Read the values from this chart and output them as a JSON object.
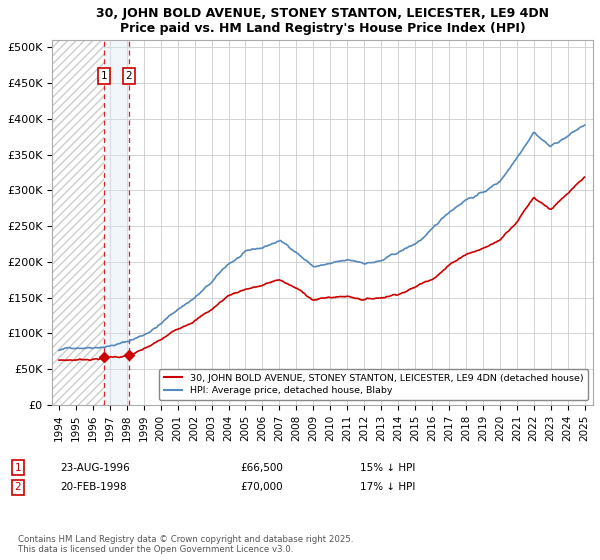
{
  "title": "30, JOHN BOLD AVENUE, STONEY STANTON, LEICESTER, LE9 4DN",
  "subtitle": "Price paid vs. HM Land Registry's House Price Index (HPI)",
  "ylabel_ticks": [
    "£0",
    "£50K",
    "£100K",
    "£150K",
    "£200K",
    "£250K",
    "£300K",
    "£350K",
    "£400K",
    "£450K",
    "£500K"
  ],
  "ytick_values": [
    0,
    50000,
    100000,
    150000,
    200000,
    250000,
    300000,
    350000,
    400000,
    450000,
    500000
  ],
  "xlim_start": 1993.6,
  "xlim_end": 2025.5,
  "ylim": [
    0,
    510000
  ],
  "sale_dates": [
    1996.645,
    1998.13
  ],
  "sale_prices": [
    66500,
    70000
  ],
  "sale_labels": [
    "1",
    "2"
  ],
  "legend_line1": "30, JOHN BOLD AVENUE, STONEY STANTON, LEICESTER, LE9 4DN (detached house)",
  "legend_line2": "HPI: Average price, detached house, Blaby",
  "footnote": "Contains HM Land Registry data © Crown copyright and database right 2025.\nThis data is licensed under the Open Government Licence v3.0.",
  "hpi_color": "#5588bb",
  "sale_color": "#cc0000",
  "shade_color": "#d8e8f5",
  "hatch_color": "#cccccc",
  "x_ticks": [
    1994,
    1995,
    1996,
    1997,
    1998,
    1999,
    2000,
    2001,
    2002,
    2003,
    2004,
    2005,
    2006,
    2007,
    2008,
    2009,
    2010,
    2011,
    2012,
    2013,
    2014,
    2015,
    2016,
    2017,
    2018,
    2019,
    2020,
    2021,
    2022,
    2023,
    2024,
    2025
  ],
  "hpi_knots": [
    1994,
    1995,
    1996,
    1997,
    1998,
    1999,
    2000,
    2001,
    2002,
    2003,
    2004,
    2005,
    2006,
    2007,
    2008,
    2009,
    2010,
    2011,
    2012,
    2013,
    2014,
    2015,
    2016,
    2017,
    2018,
    2019,
    2020,
    2021,
    2022,
    2023,
    2024,
    2025
  ],
  "hpi_vals": [
    76000,
    80000,
    83000,
    87000,
    92000,
    102000,
    118000,
    138000,
    155000,
    175000,
    200000,
    215000,
    220000,
    230000,
    215000,
    195000,
    198000,
    200000,
    197000,
    200000,
    210000,
    222000,
    240000,
    265000,
    285000,
    295000,
    310000,
    345000,
    385000,
    365000,
    380000,
    395000
  ],
  "red_knots": [
    1994,
    1995,
    1996,
    1997,
    1998,
    1999,
    2000,
    2001,
    2002,
    2003,
    2004,
    2005,
    2006,
    2007,
    2008,
    2009,
    2010,
    2011,
    2012,
    2013,
    2014,
    2015,
    2016,
    2017,
    2018,
    2019,
    2020,
    2021,
    2022,
    2023,
    2024,
    2025
  ],
  "red_vals": [
    62000,
    63000,
    65000,
    68000,
    70000,
    78000,
    90000,
    105000,
    120000,
    135000,
    155000,
    165000,
    170000,
    178000,
    165000,
    150000,
    153000,
    155000,
    152000,
    155000,
    162000,
    172000,
    185000,
    205000,
    222000,
    230000,
    242000,
    270000,
    305000,
    290000,
    310000,
    330000
  ]
}
